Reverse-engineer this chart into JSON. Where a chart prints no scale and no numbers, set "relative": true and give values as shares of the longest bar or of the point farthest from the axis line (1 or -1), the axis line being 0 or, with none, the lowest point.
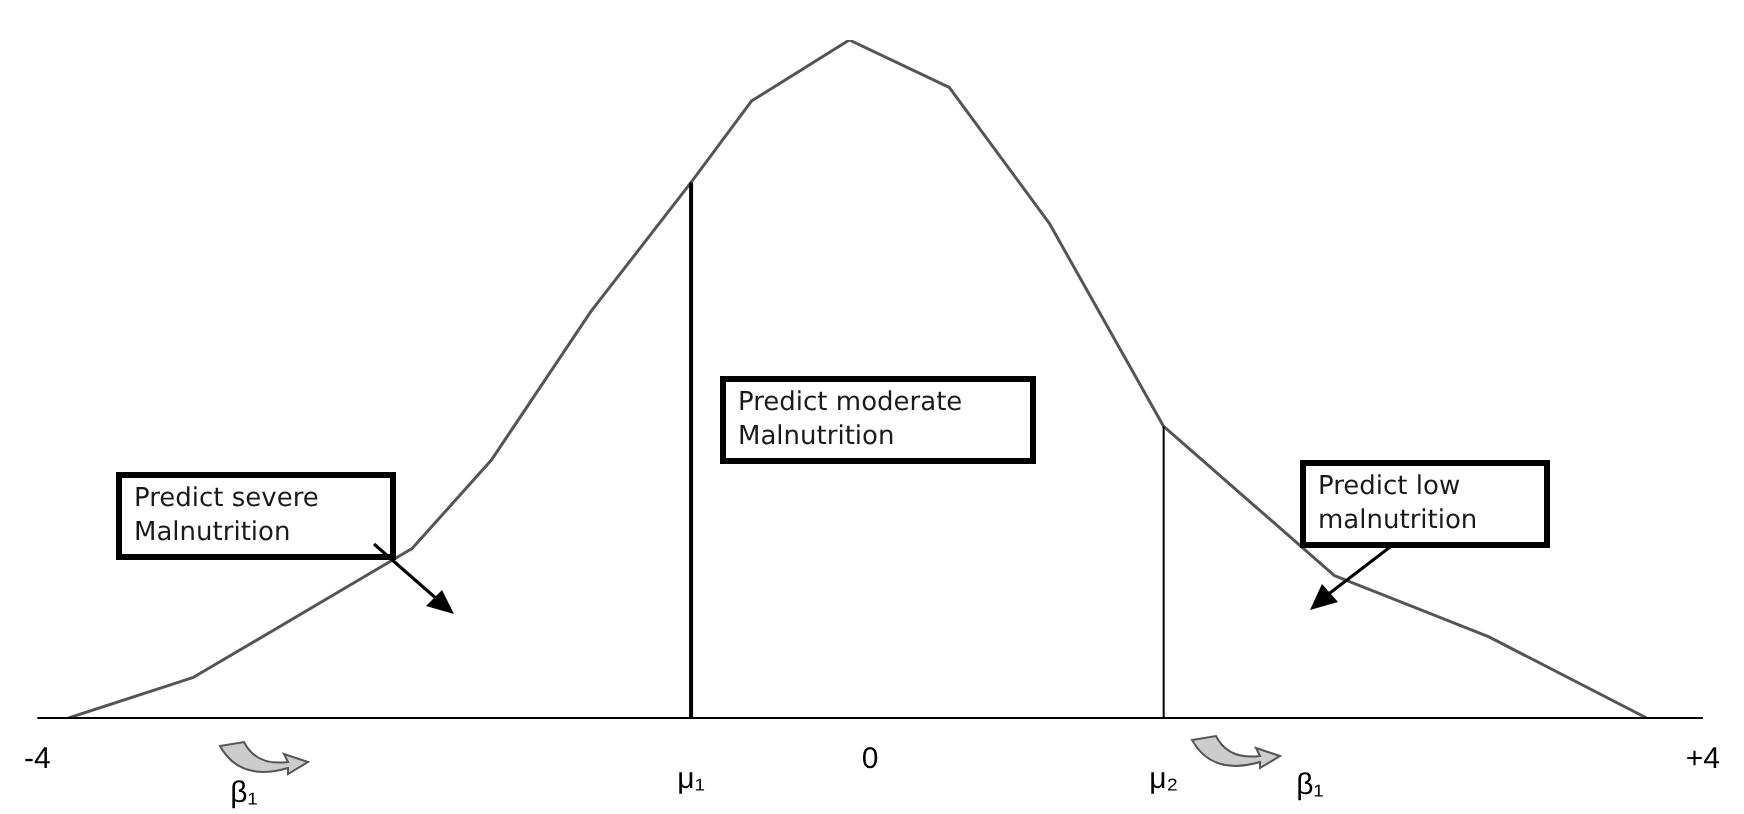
{
  "chart_data": {
    "type": "line",
    "relative": true,
    "color": "#555555",
    "marker": "none",
    "line_style": "solid",
    "grid": false,
    "legend": false,
    "tick_labels": "x",
    "x": [
      -3.85,
      -3.25,
      -2.2,
      -1.82,
      -1.34,
      -0.86,
      -0.57,
      -0.1,
      0.38,
      0.86,
      1.41,
      2.23,
      2.97,
      3.73
    ],
    "values": [
      0,
      0.06,
      0.25,
      0.38,
      0.6,
      0.79,
      0.91,
      1,
      0.93,
      0.73,
      0.43,
      0.21,
      0.12,
      0
    ],
    "xlim": [
      -4,
      4
    ],
    "xticks": [
      -4,
      0,
      {
        "value": 4,
        "label": "+4"
      }
    ],
    "ref_lines": [
      {
        "axis": "x",
        "value": -0.86,
        "label": "μ₁",
        "color": "#000000"
      },
      {
        "axis": "x",
        "value": 1.41,
        "label": "μ₂",
        "color": "#000000"
      }
    ],
    "annotations": [
      "Predict severe Malnutrition",
      "Predict moderate Malnutrition",
      "Predict low malnutrition",
      "β₁",
      "β₁"
    ]
  }
}
